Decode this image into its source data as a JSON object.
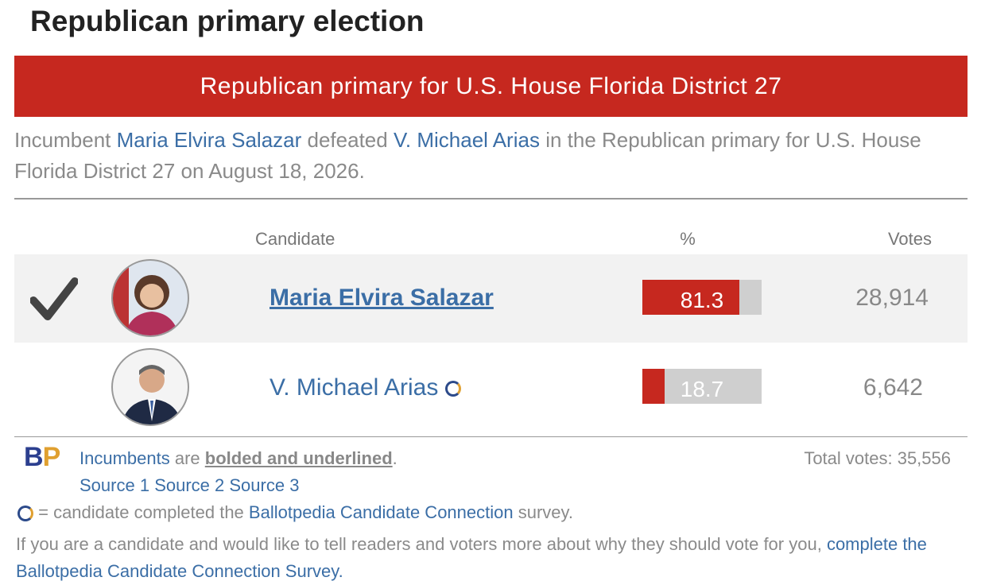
{
  "header": {
    "title": "Republican primary election"
  },
  "race": {
    "title": "Republican primary for U.S. House Florida District 27",
    "description": [
      "Incumbent ",
      "Maria Elvira Salazar",
      " defeated ",
      "V. Michael Arias",
      " in the Republican primary for U.S. House Florida District 27 on August 18, 2026."
    ]
  },
  "table": {
    "columns": [
      "Candidate",
      "%",
      "Votes"
    ],
    "rows": [
      {
        "name": "Maria Elvira Salazar",
        "percent": 81.3,
        "votes": "28,914"
      },
      {
        "name": "V. Michael Arias",
        "percent": 18.7,
        "votes": "6,642"
      }
    ]
  },
  "footer": {
    "logo": [
      "B",
      "P"
    ],
    "note": [
      "Incumbents",
      " are ",
      "bolded and underlined",
      ". "
    ],
    "sources": [
      "Source 1",
      "Source 2",
      "Source 3"
    ],
    "total_votes": "Total votes: 35,556",
    "survey_note": [
      " = candidate completed the ",
      "Ballotpedia Candidate Connection",
      " survey."
    ],
    "cta": [
      "If you are a candidate and would like to tell readers and voters more about why they should vote for you, ",
      "complete the Ballotpedia Candidate Connection Survey."
    ]
  }
}
